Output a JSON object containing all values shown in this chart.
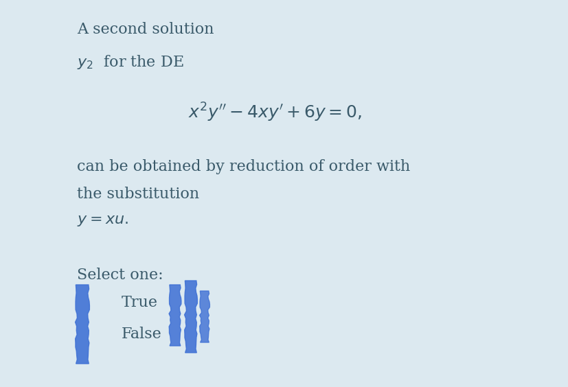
{
  "bg_color": "#dce9f0",
  "text_color": "#3a5a6a",
  "title_line1": "A second solution",
  "title_line2": "$y_2$  for the DE",
  "equation": "$x^2y'' - 4xy' + 6y = 0,$",
  "body_line1": "can be obtained by reduction of order with",
  "body_line2": "the substitution",
  "body_line3": "$y = xu.$",
  "select_label": "Select one:",
  "option1": "True",
  "option2": "False",
  "font_size_body": 16,
  "font_size_eq": 18,
  "fig_width": 8.28,
  "fig_height": 5.64,
  "blue_color": "#3d6fd4"
}
